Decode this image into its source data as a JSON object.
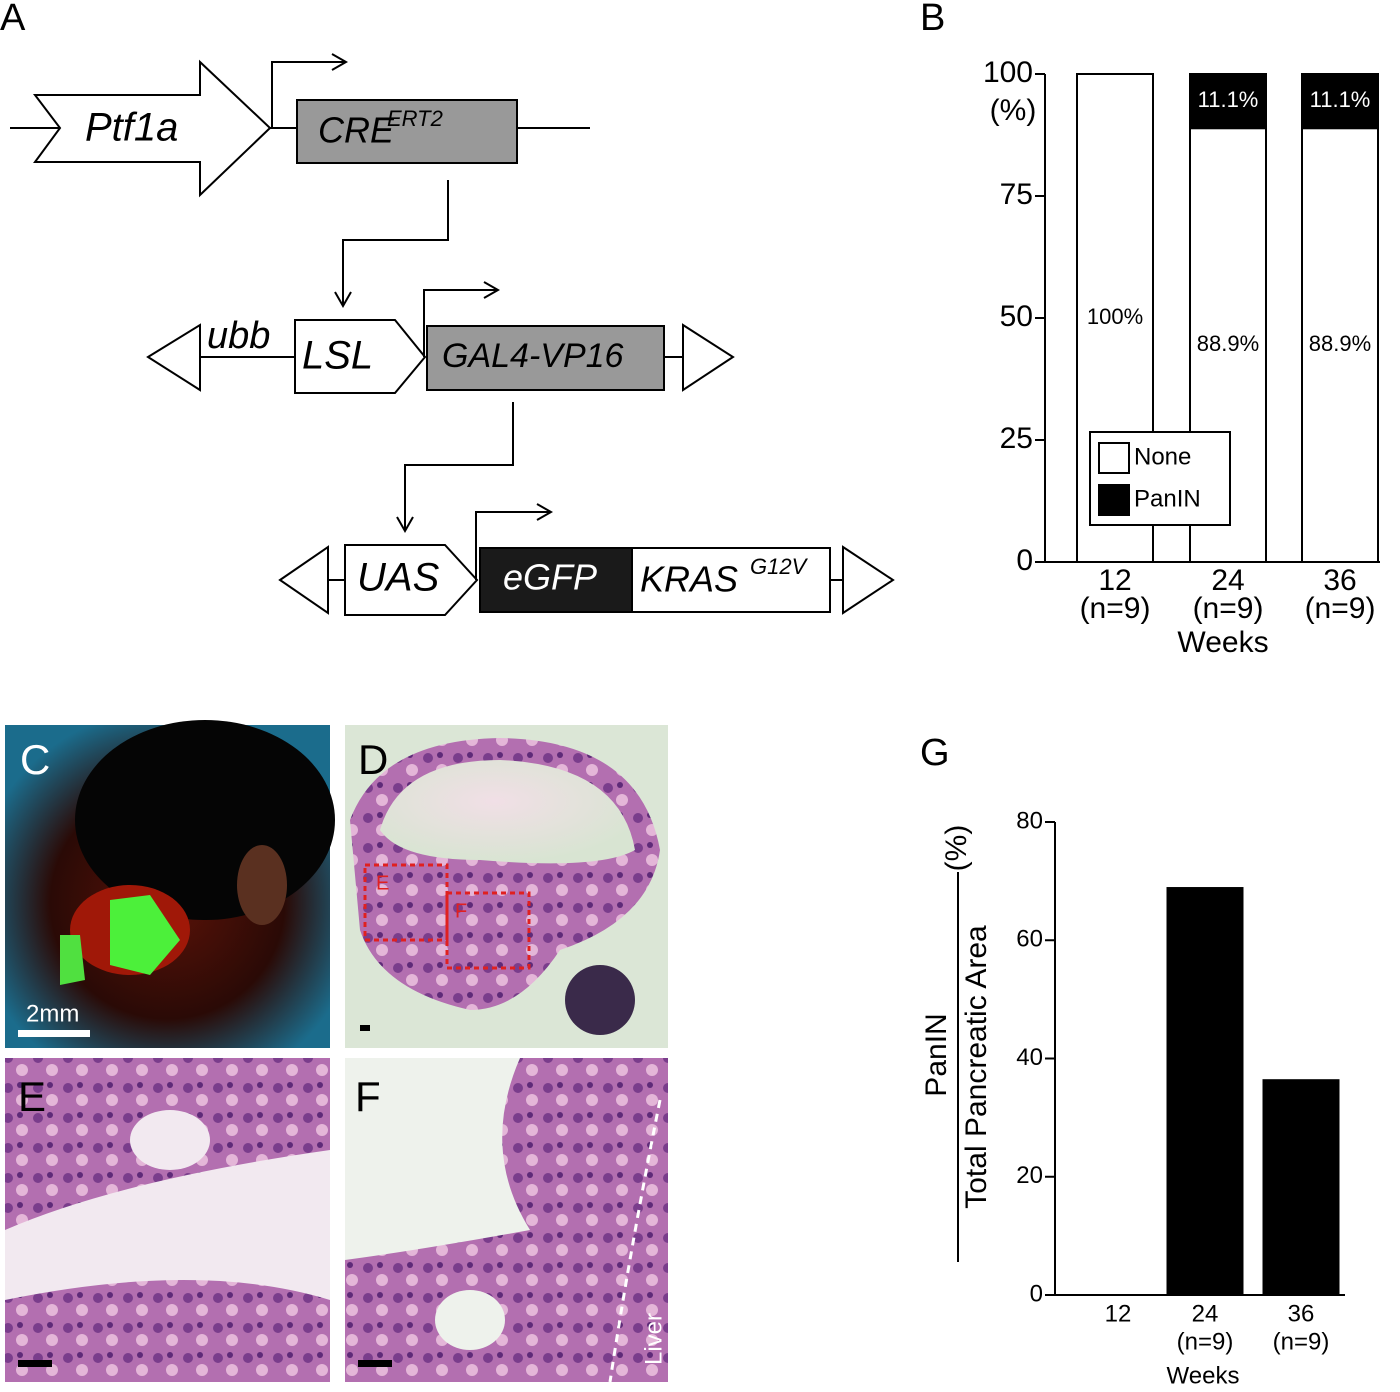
{
  "panel_labels": {
    "A": "A",
    "B": "B",
    "C": "C",
    "D": "D",
    "E": "E",
    "F": "F",
    "G": "G"
  },
  "diagram": {
    "promoter": "Ptf1a",
    "cre": "CRE",
    "cre_sup": "ERT2",
    "ubb": "ubb",
    "lsl": "LSL",
    "gal4": "GAL4-VP16",
    "uas": "UAS",
    "egfp": "eGFP",
    "kras": "KRAS",
    "kras_sup": "G12V"
  },
  "images": {
    "scale_bar": "2mm",
    "box_e": "E",
    "box_f": "F",
    "liver": "Liver"
  },
  "chart_data": [
    {
      "type": "stacked_bar",
      "categories": [
        "12",
        "24",
        "36"
      ],
      "category_sublabels": [
        "(n=9)",
        "(n=9)",
        "(n=9)"
      ],
      "x_label": "Weeks",
      "y_label": "(%)",
      "ylim": [
        0,
        100
      ],
      "yticks": [
        0,
        25,
        50,
        75,
        100
      ],
      "legend": "lower left",
      "series": [
        {
          "name": "None",
          "color": "#ffffff",
          "values": [
            100,
            88.9,
            88.9
          ],
          "value_labels": [
            "100%",
            "88.9%",
            "88.9%"
          ]
        },
        {
          "name": "PanIN",
          "color": "#000000",
          "values": [
            0,
            11.1,
            11.1
          ],
          "value_labels": [
            null,
            "11.1%",
            "11.1%"
          ]
        }
      ]
    },
    {
      "type": "bar",
      "categories": [
        "12",
        "24",
        "36"
      ],
      "category_sublabels": [
        null,
        "(n=9)",
        "(n=9)"
      ],
      "x_label": "Weeks",
      "y_label_numerator": "PanIN",
      "y_label_denominator": "Total Pancreatic Area",
      "y_label_unit": "(%)",
      "color": "#000000",
      "values": [
        0,
        69,
        36.5
      ],
      "ylim": [
        0,
        80
      ],
      "yticks": [
        0,
        20,
        40,
        60,
        80
      ]
    }
  ]
}
